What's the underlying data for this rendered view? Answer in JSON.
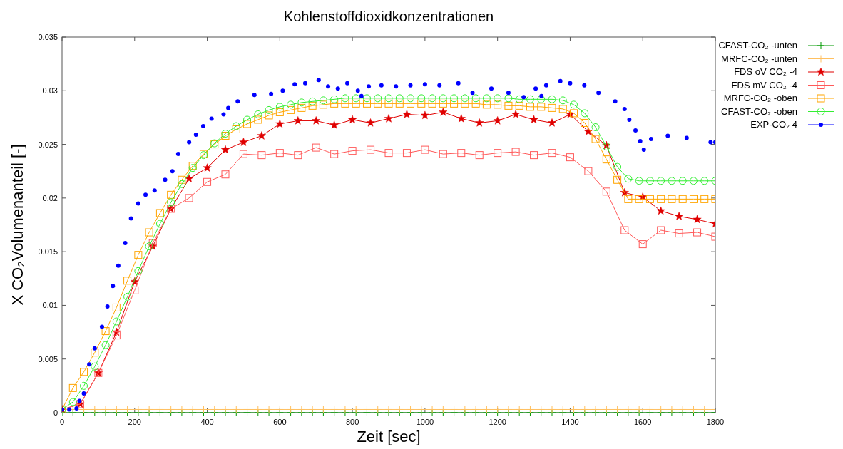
{
  "chart_data": {
    "type": "line",
    "title": "Kohlenstoffdioxidkonzentrationen",
    "xlabel": "Zeit [sec]",
    "ylabel": "X CO₂Volumenanteil [-]",
    "x": [
      0,
      30,
      60,
      90,
      120,
      150,
      180,
      210,
      240,
      270,
      300,
      330,
      360,
      390,
      420,
      450,
      480,
      510,
      540,
      570,
      600,
      630,
      660,
      690,
      720,
      750,
      780,
      810,
      840,
      870,
      900,
      930,
      960,
      990,
      1020,
      1050,
      1080,
      1110,
      1140,
      1170,
      1200,
      1230,
      1260,
      1290,
      1320,
      1350,
      1380,
      1410,
      1440,
      1470,
      1500,
      1530,
      1560,
      1590,
      1620,
      1650,
      1680,
      1710,
      1740,
      1770,
      1800
    ],
    "xlim": [
      0,
      1800
    ],
    "xticks": [
      0,
      200,
      400,
      600,
      800,
      1000,
      1200,
      1400,
      1600,
      1800
    ],
    "ylim": [
      0,
      0.035
    ],
    "yticks": [
      0,
      0.005,
      0.01,
      0.015,
      0.02,
      0.025,
      0.03,
      0.035
    ],
    "grid": false,
    "legend": "right",
    "series": [
      {
        "name": "CFAST-CO₂ -unten",
        "color": "#009900",
        "marker": "cross",
        "values": [
          0,
          0,
          0,
          0,
          0,
          0,
          0,
          0,
          0,
          0,
          0,
          0,
          0,
          0,
          0,
          0,
          0,
          0,
          0,
          0,
          0,
          0,
          0,
          0,
          0,
          0,
          0,
          0,
          0,
          0,
          0,
          0,
          0,
          0,
          0,
          0,
          0,
          0,
          0,
          0,
          0,
          0,
          0,
          0,
          0,
          0,
          0,
          0,
          0,
          0,
          0,
          0,
          0,
          0,
          0,
          0,
          0,
          0,
          0,
          0,
          0
        ]
      },
      {
        "name": "MRFC-CO₂ -unten",
        "color": "#ffc060",
        "marker": "cross",
        "values": [
          0.0003,
          0.0003,
          0.0003,
          0.0003,
          0.0003,
          0.0003,
          0.0003,
          0.0003,
          0.0003,
          0.0003,
          0.0003,
          0.0003,
          0.0003,
          0.0003,
          0.0003,
          0.0003,
          0.0003,
          0.0003,
          0.0003,
          0.0003,
          0.0003,
          0.0003,
          0.0003,
          0.0003,
          0.0003,
          0.0003,
          0.0003,
          0.0003,
          0.0003,
          0.0003,
          0.0003,
          0.0003,
          0.0003,
          0.0003,
          0.0003,
          0.0003,
          0.0003,
          0.0003,
          0.0003,
          0.0003,
          0.0003,
          0.0003,
          0.0003,
          0.0003,
          0.0003,
          0.0003,
          0.0003,
          0.0003,
          0.0003,
          0.0003,
          0.0003,
          0.0003,
          0.0003,
          0.0003,
          0.0003,
          0.0003,
          0.0003,
          0.0003,
          0.0003,
          0.0003,
          0.0003
        ]
      },
      {
        "name": "FDS oV CO₂ -4",
        "color": "#e00000",
        "marker": "star",
        "x": [
          0,
          50,
          100,
          150,
          200,
          250,
          300,
          350,
          400,
          450,
          500,
          550,
          600,
          650,
          700,
          750,
          800,
          850,
          900,
          950,
          1000,
          1050,
          1100,
          1150,
          1200,
          1250,
          1300,
          1350,
          1400,
          1450,
          1500,
          1550,
          1600,
          1650,
          1700,
          1750,
          1800
        ],
        "values": [
          0.0003,
          0.0008,
          0.0037,
          0.0075,
          0.0122,
          0.0155,
          0.019,
          0.0218,
          0.0228,
          0.0245,
          0.0252,
          0.0258,
          0.0269,
          0.0272,
          0.0272,
          0.0268,
          0.0273,
          0.027,
          0.0274,
          0.0278,
          0.0277,
          0.028,
          0.0274,
          0.027,
          0.0272,
          0.0278,
          0.0273,
          0.027,
          0.0278,
          0.0262,
          0.0249,
          0.0205,
          0.0201,
          0.0188,
          0.0183,
          0.018,
          0.0176
        ]
      },
      {
        "name": "FDS mV CO₂ -4",
        "color": "#ff5a5a",
        "marker": "square",
        "x": [
          0,
          50,
          100,
          150,
          200,
          250,
          300,
          350,
          400,
          450,
          500,
          550,
          600,
          650,
          700,
          750,
          800,
          850,
          900,
          950,
          1000,
          1050,
          1100,
          1150,
          1200,
          1250,
          1300,
          1350,
          1400,
          1450,
          1500,
          1550,
          1600,
          1650,
          1700,
          1750,
          1800
        ],
        "values": [
          0.0003,
          0.0008,
          0.0037,
          0.0072,
          0.0114,
          0.0158,
          0.019,
          0.02,
          0.0215,
          0.0222,
          0.0241,
          0.024,
          0.0242,
          0.024,
          0.0247,
          0.0241,
          0.0244,
          0.0245,
          0.0242,
          0.0242,
          0.0245,
          0.0241,
          0.0242,
          0.024,
          0.0242,
          0.0243,
          0.024,
          0.0242,
          0.0238,
          0.0225,
          0.0206,
          0.017,
          0.0157,
          0.017,
          0.0167,
          0.0168,
          0.0164
        ]
      },
      {
        "name": "MRFC-CO₂ -oben",
        "color": "#ffa500",
        "marker": "square",
        "values": [
          0.0003,
          0.0023,
          0.0038,
          0.0056,
          0.0076,
          0.0098,
          0.0123,
          0.0147,
          0.0168,
          0.0186,
          0.0203,
          0.0217,
          0.023,
          0.0241,
          0.025,
          0.0258,
          0.0264,
          0.0269,
          0.0273,
          0.0277,
          0.028,
          0.0282,
          0.0284,
          0.0286,
          0.0287,
          0.0288,
          0.0288,
          0.0288,
          0.0288,
          0.0288,
          0.0288,
          0.0288,
          0.0288,
          0.0288,
          0.0288,
          0.0288,
          0.0288,
          0.0288,
          0.0288,
          0.0287,
          0.0287,
          0.0286,
          0.0286,
          0.0285,
          0.0285,
          0.0284,
          0.0283,
          0.0279,
          0.027,
          0.0255,
          0.0236,
          0.0217,
          0.0199,
          0.0199,
          0.0199,
          0.0199,
          0.0199,
          0.0199,
          0.0199,
          0.0199,
          0.0199
        ]
      },
      {
        "name": "CFAST-CO₂ -oben",
        "color": "#33ee33",
        "marker": "circle",
        "values": [
          0.0003,
          0.001,
          0.0025,
          0.0043,
          0.0063,
          0.0085,
          0.0108,
          0.0132,
          0.0155,
          0.0176,
          0.0196,
          0.0213,
          0.0228,
          0.024,
          0.0251,
          0.026,
          0.0267,
          0.0273,
          0.0278,
          0.0282,
          0.0285,
          0.0287,
          0.0289,
          0.029,
          0.0291,
          0.0292,
          0.0293,
          0.0293,
          0.0293,
          0.0293,
          0.0293,
          0.0293,
          0.0293,
          0.0293,
          0.0293,
          0.0293,
          0.0293,
          0.0293,
          0.0293,
          0.0293,
          0.0293,
          0.0293,
          0.0292,
          0.0292,
          0.0292,
          0.0292,
          0.0291,
          0.0287,
          0.0279,
          0.0266,
          0.0248,
          0.0229,
          0.0218,
          0.0216,
          0.0216,
          0.0216,
          0.0216,
          0.0216,
          0.0216,
          0.0216,
          0.0216
        ]
      },
      {
        "name": "EXP-CO₂ 4",
        "color": "#0000ff",
        "type": "scatter",
        "marker": "circle",
        "x": [
          0,
          20,
          40,
          48,
          60,
          75,
          90,
          110,
          125,
          140,
          155,
          174,
          190,
          210,
          230,
          255,
          284,
          304,
          320,
          350,
          369,
          389,
          412,
          445,
          458,
          484,
          530,
          576,
          608,
          641,
          670,
          707,
          733,
          760,
          786,
          815,
          825,
          845,
          880,
          920,
          960,
          1000,
          1040,
          1092,
          1131,
          1183,
          1230,
          1272,
          1305,
          1321,
          1334,
          1373,
          1400,
          1439,
          1478,
          1524,
          1550,
          1563,
          1580,
          1593,
          1603,
          1623,
          1669,
          1721,
          1787,
          1800
        ],
        "values": [
          0.0003,
          0.0003,
          0.0004,
          0.0011,
          0.0018,
          0.0045,
          0.006,
          0.008,
          0.0099,
          0.0118,
          0.0137,
          0.0158,
          0.0181,
          0.0195,
          0.0203,
          0.0207,
          0.0217,
          0.0225,
          0.0241,
          0.0252,
          0.0259,
          0.0267,
          0.0274,
          0.0278,
          0.0284,
          0.029,
          0.0296,
          0.0297,
          0.03,
          0.0306,
          0.0307,
          0.031,
          0.0304,
          0.0302,
          0.0307,
          0.03,
          0.0295,
          0.0304,
          0.0305,
          0.0304,
          0.0305,
          0.0306,
          0.0305,
          0.0307,
          0.0298,
          0.0302,
          0.0298,
          0.0294,
          0.0302,
          0.0295,
          0.0305,
          0.0309,
          0.0307,
          0.0305,
          0.0298,
          0.029,
          0.0283,
          0.0273,
          0.0263,
          0.0253,
          0.0245,
          0.0255,
          0.0258,
          0.0256,
          0.0252,
          0.0252
        ]
      }
    ]
  }
}
